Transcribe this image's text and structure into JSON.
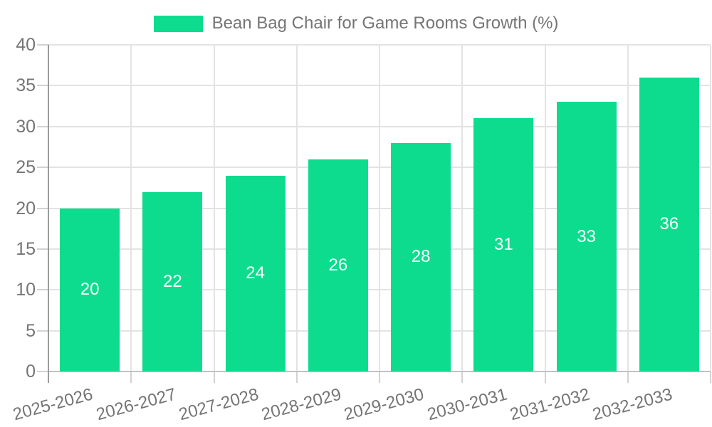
{
  "chart_data": {
    "type": "bar",
    "title": "Bean Bag Chair for Game Rooms Growth (%)",
    "categories": [
      "2025-2026",
      "2026-2027",
      "2027-2028",
      "2028-2029",
      "2029-2030",
      "2030-2031",
      "2031-2032",
      "2032-2033"
    ],
    "values": [
      20,
      22,
      24,
      26,
      28,
      31,
      33,
      36
    ],
    "xlabel": "",
    "ylabel": "",
    "ylim": [
      0,
      40
    ],
    "yticks": [
      0,
      5,
      10,
      15,
      20,
      25,
      30,
      35,
      40
    ],
    "grid": true,
    "legend_position": "top-center",
    "value_labels": "inside-center"
  },
  "colors": {
    "bar": "#0ddc8e",
    "value_text": "#ffffff",
    "axis_text": "#757575",
    "grid_line": "#e3e3e3",
    "tick_mark": "#d2d2d2",
    "y_axis_line": "#9a9a9a",
    "x_axis_line": "#c2c2c2",
    "background": "#ffffff"
  }
}
